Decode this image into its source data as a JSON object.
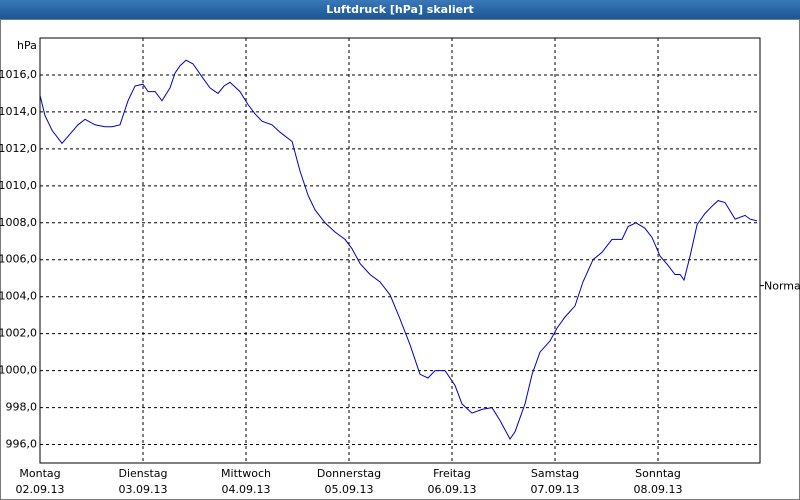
{
  "window_title": "Luftdruck [hPa] skaliert",
  "chart_data": {
    "type": "line",
    "y_unit": "hPa",
    "xlim": [
      0,
      6.99
    ],
    "xticks": [
      {
        "value": 0,
        "label": "Montag"
      },
      {
        "value": 1,
        "label": "Dienstag"
      },
      {
        "value": 2,
        "label": "Mittwoch"
      },
      {
        "value": 3,
        "label": "Donnerstag"
      },
      {
        "value": 4,
        "label": "Freitag"
      },
      {
        "value": 5,
        "label": "Samstag"
      },
      {
        "value": 6,
        "label": "Sonntag"
      }
    ],
    "xtick_dates": [
      "02.09.13",
      "03.09.13",
      "04.09.13",
      "05.09.13",
      "06.09.13",
      "07.09.13",
      "08.09.13"
    ],
    "ylim": [
      995,
      1018
    ],
    "yticks": [
      {
        "value": 996,
        "label": "996,0"
      },
      {
        "value": 998,
        "label": "998,0"
      },
      {
        "value": 1000,
        "label": "1000,0"
      },
      {
        "value": 1002,
        "label": "1002,0"
      },
      {
        "value": 1004,
        "label": "1004,0"
      },
      {
        "value": 1006,
        "label": "1006,0"
      },
      {
        "value": 1008,
        "label": "1008,0"
      },
      {
        "value": 1010,
        "label": "1010,0"
      },
      {
        "value": 1012,
        "label": "1012,0"
      },
      {
        "value": 1014,
        "label": "1014,0"
      },
      {
        "value": 1016,
        "label": "1016,0"
      }
    ],
    "grid": true,
    "annotation": {
      "text": "Normal",
      "value": 1004.6
    },
    "series": [
      {
        "color": "#0000c0",
        "x": [
          0,
          0.049,
          0.117,
          0.214,
          0.291,
          0.369,
          0.437,
          0.534,
          0.631,
          0.699,
          0.777,
          0.854,
          0.922,
          1.0,
          1.049,
          1.117,
          1.184,
          1.262,
          1.311,
          1.359,
          1.417,
          1.485,
          1.573,
          1.65,
          1.728,
          1.786,
          1.845,
          1.942,
          2.019,
          2.087,
          2.155,
          2.252,
          2.33,
          2.447,
          2.524,
          2.602,
          2.67,
          2.767,
          2.864,
          2.961,
          3.029,
          3.107,
          3.204,
          3.301,
          3.398,
          3.495,
          3.592,
          3.689,
          3.767,
          3.835,
          3.932,
          4.029,
          4.097,
          4.194,
          4.291,
          4.388,
          4.466,
          4.563,
          4.612,
          4.709,
          4.777,
          4.854,
          4.951,
          5.019,
          5.097,
          5.194,
          5.272,
          5.369,
          5.456,
          5.553,
          5.65,
          5.709,
          5.786,
          5.874,
          5.942,
          6.019,
          6.097,
          6.165,
          6.214,
          6.252,
          6.311,
          6.379,
          6.456,
          6.524,
          6.583,
          6.65,
          6.748,
          6.845,
          6.893,
          6.961
        ],
        "values": [
          1014.9,
          1013.8,
          1013.0,
          1012.3,
          1012.8,
          1013.3,
          1013.6,
          1013.3,
          1013.2,
          1013.2,
          1013.3,
          1014.6,
          1015.4,
          1015.5,
          1015.1,
          1015.1,
          1014.6,
          1015.3,
          1016.1,
          1016.5,
          1016.8,
          1016.6,
          1015.9,
          1015.3,
          1015.0,
          1015.4,
          1015.6,
          1015.1,
          1014.4,
          1013.9,
          1013.5,
          1013.3,
          1012.9,
          1012.4,
          1010.8,
          1009.5,
          1008.7,
          1008.0,
          1007.5,
          1007.1,
          1006.6,
          1005.8,
          1005.2,
          1004.8,
          1004.1,
          1002.8,
          1001.4,
          999.8,
          999.6,
          1000.0,
          1000.0,
          999.2,
          998.2,
          997.7,
          997.9,
          998.0,
          997.3,
          996.3,
          996.7,
          998.2,
          999.8,
          1001.0,
          1001.6,
          1002.3,
          1002.9,
          1003.5,
          1004.8,
          1006.0,
          1006.4,
          1007.1,
          1007.1,
          1007.8,
          1008.0,
          1007.7,
          1007.2,
          1006.2,
          1005.7,
          1005.2,
          1005.2,
          1004.9,
          1006.2,
          1007.9,
          1008.5,
          1008.9,
          1009.2,
          1009.1,
          1008.2,
          1008.4,
          1008.2,
          1008.1
        ]
      }
    ]
  }
}
